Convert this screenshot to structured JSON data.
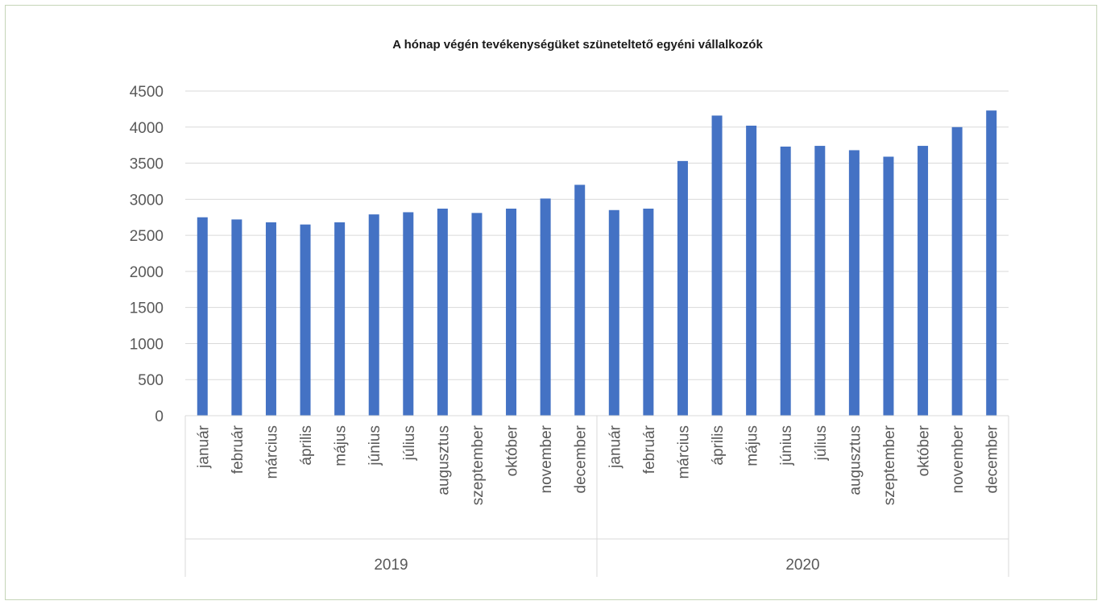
{
  "chart_data": {
    "type": "bar",
    "title": "A hónap végén tevékenységüket szüneteltető egyéni vállalkozók",
    "xlabel": "",
    "ylabel": "",
    "ylim": [
      0,
      4500
    ],
    "yticks": [
      0,
      500,
      1000,
      1500,
      2000,
      2500,
      3000,
      3500,
      4000,
      4500
    ],
    "grid": true,
    "legend": "none",
    "bar_color": "#4472c4",
    "groups": [
      {
        "label": "2019",
        "categories": [
          "január",
          "február",
          "március",
          "április",
          "május",
          "június",
          "július",
          "augusztus",
          "szeptember",
          "október",
          "november",
          "december"
        ],
        "values": [
          2750,
          2720,
          2680,
          2650,
          2680,
          2790,
          2820,
          2870,
          2810,
          2870,
          3010,
          3200
        ]
      },
      {
        "label": "2020",
        "categories": [
          "január",
          "február",
          "március",
          "április",
          "május",
          "június",
          "július",
          "augusztus",
          "szeptember",
          "október",
          "november",
          "december"
        ],
        "values": [
          2850,
          2870,
          3530,
          4160,
          4020,
          3730,
          3740,
          3680,
          3590,
          3740,
          4000,
          4230
        ]
      }
    ]
  }
}
